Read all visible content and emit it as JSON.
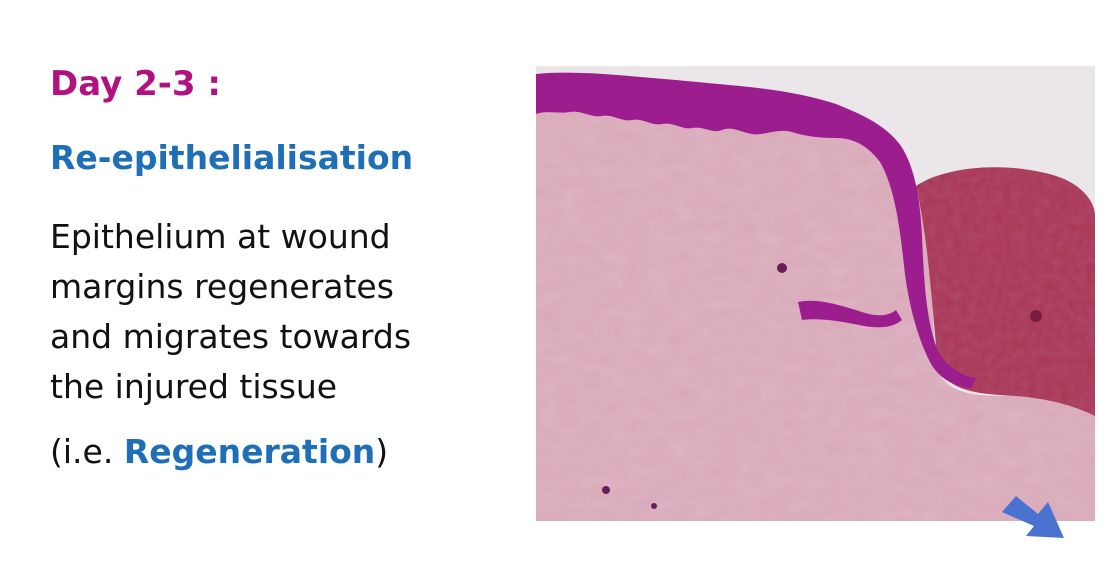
{
  "slide": {
    "heading": "Day 2-3 :",
    "subheading": "Re-epithelialisation",
    "body_lines": [
      "Epithelium at wound",
      "margins regenerates",
      "and migrates towards",
      "the injured tissue"
    ],
    "note": {
      "open": "(i.e. ",
      "highlight": "Regeneration",
      "close": ")"
    }
  },
  "image": {
    "subject": "histology micrograph of skin wound edge with regenerating epithelium (H&E stain)",
    "colors": {
      "stroma": "#d7a7b7",
      "epithelium": "#9c1d8e",
      "clot": "#a8344f",
      "background": "#ebe6ea"
    }
  },
  "arrow": {
    "icon": "arrow-down-right-icon",
    "color": "#4a72cf"
  }
}
